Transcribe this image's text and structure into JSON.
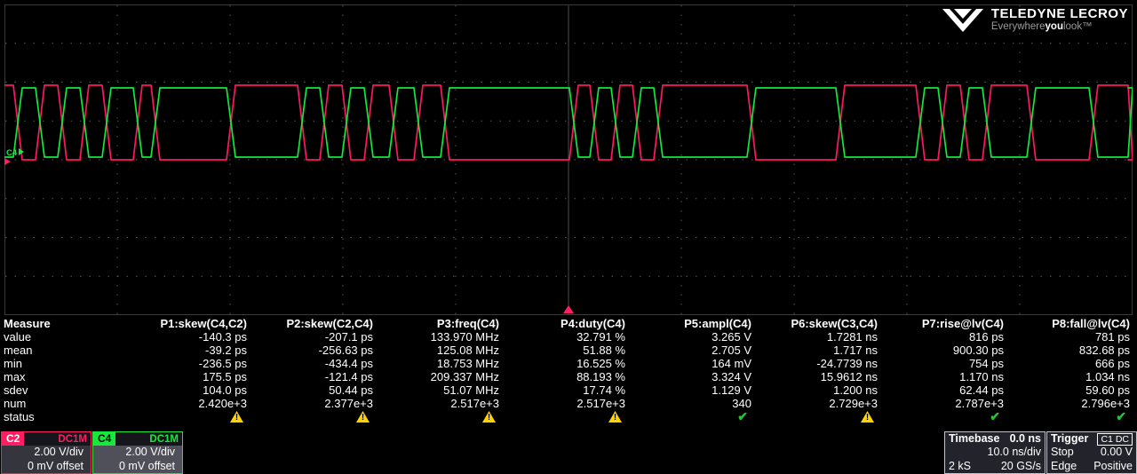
{
  "logo": {
    "brand": "TELEDYNE LECROY",
    "tagline_pre": "Everywhere",
    "tagline_bold": "you",
    "tagline_post": "look™"
  },
  "grid": {
    "h_divisions": 10,
    "v_divisions": 8,
    "border_color": "#3a3a3a",
    "dot_color": "#5a5a5a",
    "center_line_color": "#4a4a4a"
  },
  "markers": {
    "c4_zero_label": "C4",
    "c4_color": "#17e93c",
    "c2_color": "#ff1e62",
    "trigger_color": "#ff1e62"
  },
  "waveform": {
    "segments": [
      15,
      25,
      25,
      25,
      25,
      35,
      20,
      85,
      80,
      25,
      25,
      25,
      28,
      28,
      30,
      145,
      23,
      24,
      24,
      24,
      105,
      100,
      90,
      25,
      25,
      25,
      50,
      70,
      45,
      60
    ],
    "edge": 5,
    "green": {
      "start_level": 0,
      "high": 94,
      "low": 172,
      "color": "#12e83a"
    },
    "magenta": {
      "start_level": 1,
      "high": 91,
      "low": 175,
      "color": "#ff1760"
    }
  },
  "measure": {
    "header_label": "Measure",
    "status_label": "status",
    "row_labels": [
      "value",
      "mean",
      "min",
      "max",
      "sdev",
      "num"
    ],
    "columns": [
      {
        "name": "P1:skew(C4,C2)",
        "value": "-140.3 ps",
        "mean": "-39.2 ps",
        "min": "-236.5 ps",
        "max": "175.5 ps",
        "sdev": "104.0 ps",
        "num": "2.420e+3",
        "status": "warn"
      },
      {
        "name": "P2:skew(C2,C4)",
        "value": "-207.1 ps",
        "mean": "-256.63 ps",
        "min": "-434.4 ps",
        "max": "-121.4 ps",
        "sdev": "50.44 ps",
        "num": "2.377e+3",
        "status": "warn"
      },
      {
        "name": "P3:freq(C4)",
        "value": "133.970 MHz",
        "mean": "125.08 MHz",
        "min": "18.753 MHz",
        "max": "209.337 MHz",
        "sdev": "51.07 MHz",
        "num": "2.517e+3",
        "status": "warn"
      },
      {
        "name": "P4:duty(C4)",
        "value": "32.791 %",
        "mean": "51.88 %",
        "min": "16.525 %",
        "max": "88.193 %",
        "sdev": "17.74 %",
        "num": "2.517e+3",
        "status": "warn"
      },
      {
        "name": "P5:ampl(C4)",
        "value": "3.265 V",
        "mean": "2.705 V",
        "min": "164 mV",
        "max": "3.324 V",
        "sdev": "1.129 V",
        "num": "340",
        "status": "ok"
      },
      {
        "name": "P6:skew(C3,C4)",
        "value": "1.7281 ns",
        "mean": "1.717 ns",
        "min": "-24.7739 ns",
        "max": "15.9612 ns",
        "sdev": "1.200 ns",
        "num": "2.729e+3",
        "status": "warn"
      },
      {
        "name": "P7:rise@lv(C4)",
        "value": "816 ps",
        "mean": "900.30 ps",
        "min": "754 ps",
        "max": "1.170 ns",
        "sdev": "62.44 ps",
        "num": "2.787e+3",
        "status": "ok"
      },
      {
        "name": "P8:fall@lv(C4)",
        "value": "781 ps",
        "mean": "832.68 ps",
        "min": "666 ps",
        "max": "1.034 ns",
        "sdev": "59.60 ps",
        "num": "2.796e+3",
        "status": "ok"
      }
    ]
  },
  "channels": [
    {
      "id": "C2",
      "coupling": "DC1M",
      "vdiv": "2.00 V/div",
      "offset": "0 mV offset",
      "color": "#ff1e62"
    },
    {
      "id": "C4",
      "coupling": "DC1M",
      "vdiv": "2.00 V/div",
      "offset": "0 mV offset",
      "color": "#17e93c"
    }
  ],
  "timebase": {
    "label": "Timebase",
    "delay": "0.0 ns",
    "tdiv": "10.0 ns/div",
    "samples": "2 kS",
    "rate": "20 GS/s"
  },
  "trigger": {
    "label": "Trigger",
    "source": "C1 DC",
    "mode": "Stop",
    "level": "0.00 V",
    "type": "Edge",
    "slope": "Positive"
  }
}
